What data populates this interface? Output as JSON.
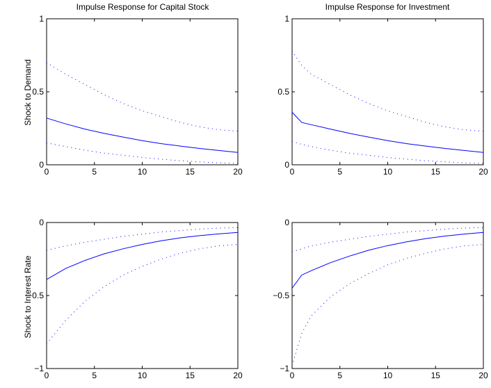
{
  "colors": {
    "band": "#0000ff",
    "response": "#0000ff",
    "axes": "#000000",
    "background": "#ffffff"
  },
  "chart_data": [
    {
      "type": "line",
      "title": "Impulse Response for Capital Stock",
      "xlabel": "",
      "ylabel": "Shock to Demand",
      "xlim": [
        0,
        20
      ],
      "ylim": [
        0,
        1
      ],
      "x_ticks": [
        0,
        5,
        10,
        15,
        20
      ],
      "y_ticks": [
        0,
        0.5,
        1
      ],
      "x_tick_labels": [
        "0",
        "5",
        "10",
        "15",
        "20"
      ],
      "y_tick_labels": [
        "0",
        "0.5",
        "1"
      ],
      "grid": false,
      "x": [
        0,
        2,
        4,
        6,
        8,
        10,
        12,
        14,
        16,
        18,
        20
      ],
      "series": [
        {
          "style": "dotted",
          "values": [
            0.7,
            0.62,
            0.55,
            0.48,
            0.42,
            0.37,
            0.33,
            0.29,
            0.26,
            0.24,
            0.23
          ]
        },
        {
          "style": "solid",
          "values": [
            0.32,
            0.28,
            0.245,
            0.215,
            0.19,
            0.165,
            0.145,
            0.128,
            0.112,
            0.098,
            0.085
          ]
        },
        {
          "style": "dotted",
          "values": [
            0.15,
            0.125,
            0.1,
            0.08,
            0.065,
            0.05,
            0.038,
            0.028,
            0.02,
            0.013,
            0.01
          ]
        }
      ]
    },
    {
      "type": "line",
      "title": "Impulse Response for Investment",
      "xlabel": "",
      "ylabel": "",
      "xlim": [
        0,
        20
      ],
      "ylim": [
        0,
        1
      ],
      "x_ticks": [
        0,
        5,
        10,
        15,
        20
      ],
      "y_ticks": [
        0,
        0.5,
        1
      ],
      "x_tick_labels": [
        "0",
        "5",
        "10",
        "15",
        "20"
      ],
      "y_tick_labels": [
        "0",
        "0.5",
        "1"
      ],
      "grid": false,
      "x": [
        0,
        1,
        2,
        4,
        6,
        8,
        10,
        12,
        14,
        16,
        18,
        20
      ],
      "series": [
        {
          "style": "dotted",
          "values": [
            0.78,
            0.68,
            0.62,
            0.55,
            0.48,
            0.42,
            0.37,
            0.33,
            0.29,
            0.26,
            0.24,
            0.23
          ]
        },
        {
          "style": "solid",
          "values": [
            0.36,
            0.29,
            0.275,
            0.245,
            0.215,
            0.19,
            0.165,
            0.145,
            0.128,
            0.112,
            0.098,
            0.085
          ]
        },
        {
          "style": "dotted",
          "values": [
            0.16,
            0.14,
            0.125,
            0.1,
            0.08,
            0.065,
            0.05,
            0.038,
            0.028,
            0.02,
            0.013,
            0.01
          ]
        }
      ]
    },
    {
      "type": "line",
      "title": "",
      "xlabel": "",
      "ylabel": "Shock to Interest Rate",
      "xlim": [
        0,
        20
      ],
      "ylim": [
        -1,
        0
      ],
      "x_ticks": [
        0,
        5,
        10,
        15,
        20
      ],
      "y_ticks": [
        -1,
        -0.5,
        0
      ],
      "x_tick_labels": [
        "0",
        "5",
        "10",
        "15",
        "20"
      ],
      "y_tick_labels": [
        "−1",
        "−0.5",
        "0"
      ],
      "grid": false,
      "x": [
        0,
        2,
        4,
        6,
        8,
        10,
        12,
        14,
        16,
        18,
        20
      ],
      "series": [
        {
          "style": "dotted",
          "values": [
            -0.19,
            -0.16,
            -0.135,
            -0.115,
            -0.095,
            -0.08,
            -0.065,
            -0.055,
            -0.045,
            -0.038,
            -0.035
          ]
        },
        {
          "style": "solid",
          "values": [
            -0.39,
            -0.315,
            -0.26,
            -0.215,
            -0.18,
            -0.15,
            -0.125,
            -0.105,
            -0.09,
            -0.078,
            -0.068
          ]
        },
        {
          "style": "dotted",
          "values": [
            -0.83,
            -0.67,
            -0.54,
            -0.44,
            -0.36,
            -0.3,
            -0.25,
            -0.21,
            -0.18,
            -0.16,
            -0.15
          ]
        }
      ]
    },
    {
      "type": "line",
      "title": "",
      "xlabel": "",
      "ylabel": "",
      "xlim": [
        0,
        20
      ],
      "ylim": [
        -1,
        0
      ],
      "x_ticks": [
        0,
        5,
        10,
        15,
        20
      ],
      "y_ticks": [
        -1,
        -0.5,
        0
      ],
      "x_tick_labels": [
        "0",
        "5",
        "10",
        "15",
        "20"
      ],
      "y_tick_labels": [
        "−1",
        "−0.5",
        "0"
      ],
      "grid": false,
      "x": [
        0,
        1,
        2,
        4,
        6,
        8,
        10,
        12,
        14,
        16,
        18,
        20
      ],
      "series": [
        {
          "style": "dotted",
          "values": [
            -0.2,
            -0.18,
            -0.16,
            -0.135,
            -0.115,
            -0.095,
            -0.08,
            -0.065,
            -0.055,
            -0.045,
            -0.038,
            -0.035
          ]
        },
        {
          "style": "solid",
          "values": [
            -0.45,
            -0.36,
            -0.33,
            -0.275,
            -0.23,
            -0.19,
            -0.158,
            -0.132,
            -0.11,
            -0.093,
            -0.079,
            -0.068
          ]
        },
        {
          "style": "dotted",
          "values": [
            -0.98,
            -0.76,
            -0.64,
            -0.51,
            -0.42,
            -0.35,
            -0.29,
            -0.245,
            -0.21,
            -0.18,
            -0.16,
            -0.15
          ]
        }
      ]
    }
  ]
}
